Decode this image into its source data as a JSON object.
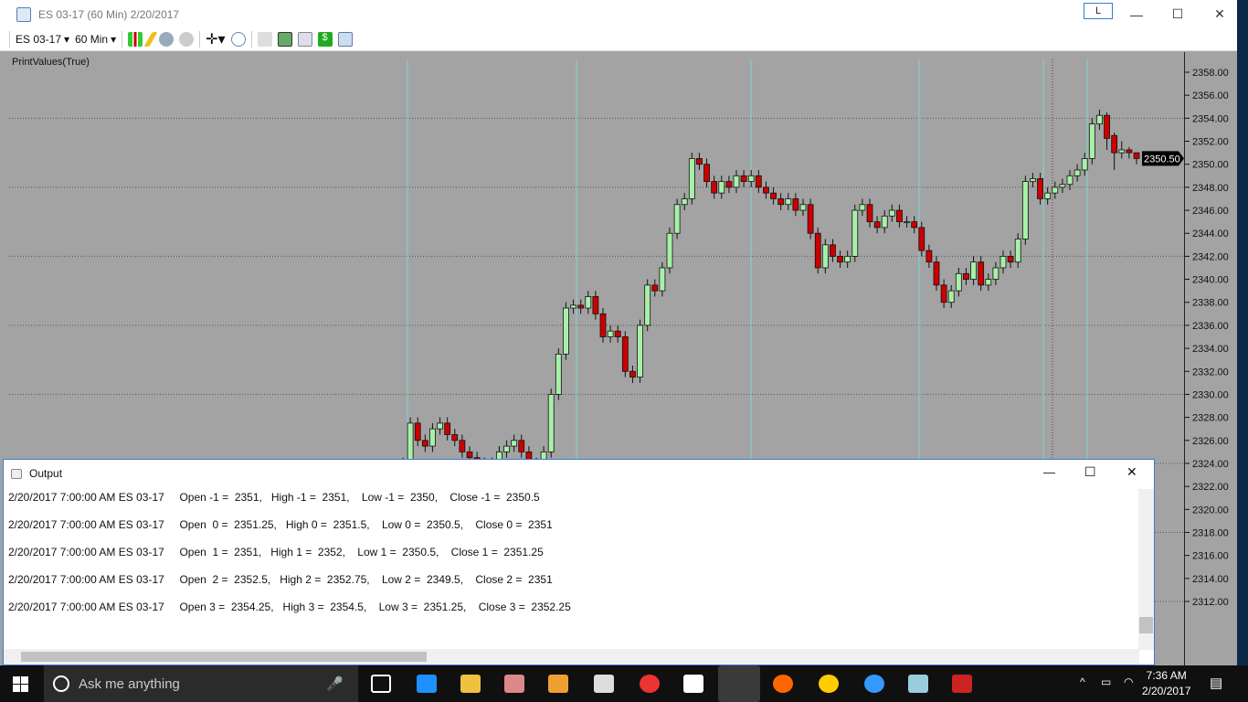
{
  "window": {
    "title": "ES 03-17 (60 Min)  2/20/2017",
    "link_button": "L",
    "minimize": "—",
    "maximize": "☐",
    "close": "✕"
  },
  "toolbar": {
    "instrument": "ES 03-17",
    "interval": "60 Min",
    "icons": [
      "candlestick-style-icon",
      "pencil-draw-icon",
      "zoom-in-icon",
      "zoom-out-icon",
      "crosshair-icon",
      "magnifier-icon",
      "properties-icon",
      "bar-chart-icon",
      "indicator-icon",
      "strategy-dollar-icon",
      "data-box-icon"
    ]
  },
  "chart": {
    "indicator_label": "PrintValues(True)",
    "current_price": "2350.50",
    "colors": {
      "up": "#a8f0a8",
      "down": "#cc0000",
      "background": "#a3a3a3",
      "session_line": "#7fd6d6"
    },
    "price_ticks": [
      "2358.00",
      "2356.00",
      "2354.00",
      "2352.00",
      "2350.00",
      "2348.00",
      "2346.00",
      "2344.00",
      "2342.00",
      "2340.00",
      "2338.00",
      "2336.00",
      "2334.00",
      "2332.00",
      "2330.00",
      "2328.00",
      "2326.00",
      "2324.00",
      "2322.00",
      "2320.00",
      "2318.00",
      "2316.00",
      "2314.00",
      "2312.00"
    ]
  },
  "chart_data": {
    "type": "candlestick",
    "ylim": [
      2311,
      2359
    ],
    "closes": [
      2324,
      2327.5,
      2326,
      2325.5,
      2327,
      2327.5,
      2326.5,
      2326,
      2325,
      2324.5,
      2324,
      2323.5,
      2324,
      2325,
      2325.5,
      2326,
      2325,
      2324,
      2323.5,
      2325,
      2330,
      2333.5,
      2337.5,
      2337.75,
      2337.5,
      2338.5,
      2337,
      2335,
      2335.5,
      2335,
      2332,
      2331.5,
      2336,
      2339.5,
      2339,
      2341,
      2344,
      2346.5,
      2347,
      2350.5,
      2350,
      2348.5,
      2347.5,
      2348.5,
      2348,
      2349,
      2348.5,
      2349,
      2348,
      2347.5,
      2347,
      2346.5,
      2347,
      2346,
      2346.5,
      2344,
      2341,
      2343,
      2342,
      2341.5,
      2342,
      2346,
      2346.5,
      2345,
      2344.5,
      2345.5,
      2346,
      2345,
      2345,
      2344.5,
      2342.5,
      2341.5,
      2339.5,
      2338,
      2339,
      2340.5,
      2340,
      2341.5,
      2339.5,
      2340,
      2341,
      2342,
      2341.5,
      2343.5,
      2348.5,
      2348.75,
      2347,
      2347.5,
      2348,
      2348.25,
      2349,
      2349.5,
      2350.5,
      2353.5,
      2354.25
    ],
    "last_bars_ohlc": [
      [
        2354.25,
        2354.5,
        2351.25,
        2352.25
      ],
      [
        2352.5,
        2352.75,
        2349.5,
        2351
      ],
      [
        2351,
        2352,
        2350.5,
        2351.25
      ],
      [
        2351.25,
        2351.5,
        2350.5,
        2351
      ],
      [
        2351,
        2351,
        2350,
        2350.5
      ]
    ]
  },
  "output": {
    "title": "Output",
    "lines": [
      "2/20/2017 7:00:00 AM ES 03-17     Open -1 =  2351,   High -1 =  2351,    Low -1 =  2350,    Close -1 =  2350.5",
      "2/20/2017 7:00:00 AM ES 03-17     Open  0 =  2351.25,   High 0 =  2351.5,    Low 0 =  2350.5,    Close 0 =  2351",
      "2/20/2017 7:00:00 AM ES 03-17     Open  1 =  2351,   High 1 =  2352,    Low 1 =  2350.5,    Close 1 =  2351.25",
      "2/20/2017 7:00:00 AM ES 03-17     Open  2 =  2352.5,   High 2 =  2352.75,    Low 2 =  2349.5,    Close 2 =  2351",
      "2/20/2017 7:00:00 AM ES 03-17     Open 3 =  2354.25,   High 3 =  2354.5,    Low 3 =  2351.25,    Close 3 =  2352.25"
    ]
  },
  "taskbar": {
    "search_placeholder": "Ask me anything",
    "time": "7:36 AM",
    "date": "2/20/2017"
  }
}
